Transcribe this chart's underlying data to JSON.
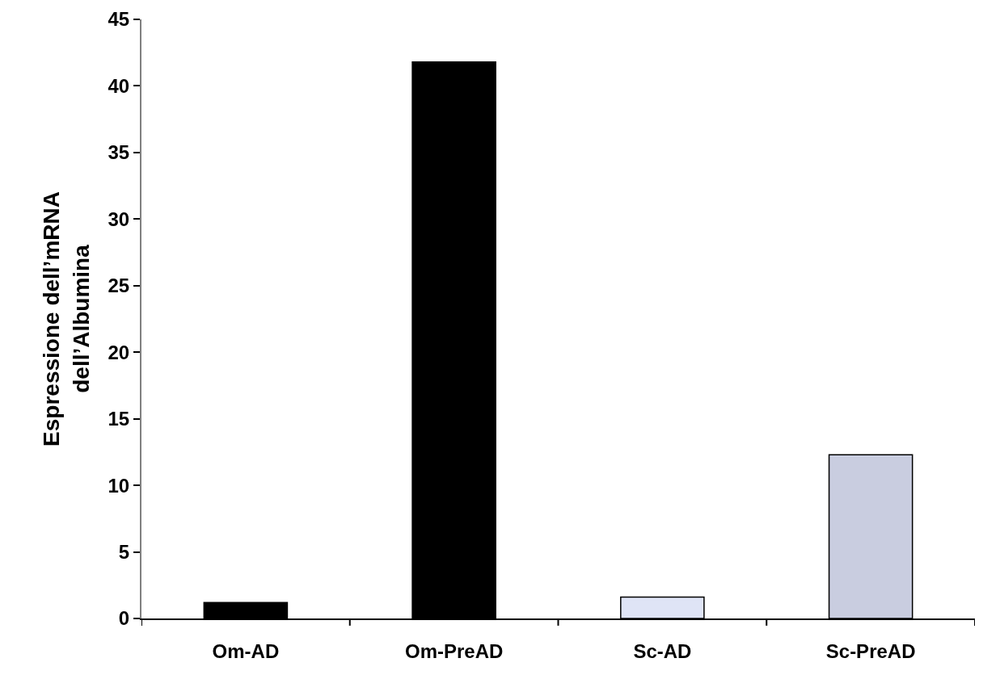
{
  "chart_data": {
    "type": "bar",
    "ylabel": "Espressione dell’mRNA\ndell’Albumina",
    "categories": [
      "Om-AD",
      "Om-PreAD",
      "Sc-AD",
      "Sc-PreAD"
    ],
    "values": [
      1.2,
      41.8,
      1.6,
      12.3
    ],
    "colors": [
      "#000000",
      "#000000",
      "#dfe4f6",
      "#c9cde0"
    ],
    "ylim": [
      0,
      45
    ],
    "yticks": [
      0,
      5,
      10,
      15,
      20,
      25,
      30,
      35,
      40,
      45
    ]
  }
}
